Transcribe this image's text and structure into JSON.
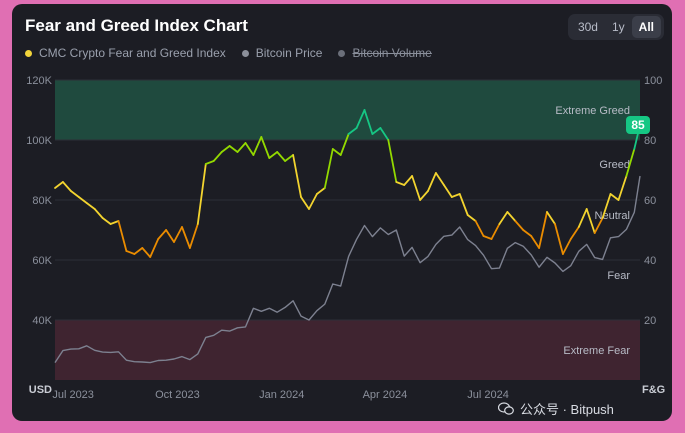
{
  "title": "Fear and Greed Index Chart",
  "range_buttons": [
    "30d",
    "1y",
    "All"
  ],
  "active_range": "All",
  "legend": [
    {
      "label": "CMC Crypto Fear and Greed Index",
      "color": "#f2d43b",
      "active": true
    },
    {
      "label": "Bitcoin Price",
      "color": "#8b8f9a",
      "active": true
    },
    {
      "label": "Bitcoin Volume",
      "color": "#6b6f7a",
      "active": false
    }
  ],
  "colors": {
    "extreme_greed_zone": "#1f4a3e",
    "extreme_fear_zone": "#3f2430",
    "extreme_greed": "#16c784",
    "greed": "#93d900",
    "neutral": "#f3d42f",
    "fear": "#ea8c00",
    "extreme_fear": "#ea3943",
    "btc_line": "#7d8190",
    "current_badge": "#16c784"
  },
  "chart_data": {
    "type": "line",
    "x_ticks": [
      "Jul 2023",
      "Oct 2023",
      "Jan 2024",
      "Apr 2024",
      "Jul 2024"
    ],
    "left_axis": {
      "title": "USD",
      "ticks": [
        "120K",
        "100K",
        "80K",
        "60K",
        "40K"
      ],
      "range": [
        20000,
        120000
      ]
    },
    "right_axis": {
      "title": "F&G",
      "ticks": [
        "100",
        "80",
        "60",
        "40",
        "20"
      ],
      "range": [
        0,
        100
      ]
    },
    "zones": [
      "Extreme Greed",
      "Greed",
      "Neutral",
      "Fear",
      "Extreme Fear"
    ],
    "x_range": [
      "2023-06-15",
      "2024-11-12"
    ],
    "current_value": "85",
    "series": [
      {
        "name": "CMC Crypto Fear and Greed Index",
        "points": [
          [
            "2023-06-15",
            64
          ],
          [
            "2023-06-22",
            66
          ],
          [
            "2023-06-29",
            63
          ],
          [
            "2023-07-06",
            61
          ],
          [
            "2023-07-13",
            59
          ],
          [
            "2023-07-20",
            57
          ],
          [
            "2023-07-27",
            54
          ],
          [
            "2023-08-03",
            52
          ],
          [
            "2023-08-10",
            53
          ],
          [
            "2023-08-17",
            43
          ],
          [
            "2023-08-24",
            42
          ],
          [
            "2023-08-31",
            44
          ],
          [
            "2023-09-07",
            41
          ],
          [
            "2023-09-14",
            47
          ],
          [
            "2023-09-21",
            50
          ],
          [
            "2023-09-28",
            46
          ],
          [
            "2023-10-05",
            51
          ],
          [
            "2023-10-12",
            44
          ],
          [
            "2023-10-19",
            52
          ],
          [
            "2023-10-26",
            72
          ],
          [
            "2023-11-02",
            73
          ],
          [
            "2023-11-09",
            76
          ],
          [
            "2023-11-16",
            78
          ],
          [
            "2023-11-23",
            76
          ],
          [
            "2023-11-30",
            79
          ],
          [
            "2023-12-07",
            75
          ],
          [
            "2023-12-14",
            81
          ],
          [
            "2023-12-21",
            74
          ],
          [
            "2023-12-28",
            76
          ],
          [
            "2024-01-04",
            73
          ],
          [
            "2024-01-11",
            75
          ],
          [
            "2024-01-18",
            61
          ],
          [
            "2024-01-25",
            57
          ],
          [
            "2024-02-01",
            62
          ],
          [
            "2024-02-08",
            64
          ],
          [
            "2024-02-15",
            77
          ],
          [
            "2024-02-22",
            75
          ],
          [
            "2024-02-29",
            82
          ],
          [
            "2024-03-07",
            84
          ],
          [
            "2024-03-14",
            90
          ],
          [
            "2024-03-21",
            82
          ],
          [
            "2024-03-28",
            84
          ],
          [
            "2024-04-04",
            80
          ],
          [
            "2024-04-11",
            66
          ],
          [
            "2024-04-18",
            65
          ],
          [
            "2024-04-25",
            68
          ],
          [
            "2024-05-02",
            60
          ],
          [
            "2024-05-09",
            63
          ],
          [
            "2024-05-16",
            69
          ],
          [
            "2024-05-23",
            65
          ],
          [
            "2024-05-30",
            61
          ],
          [
            "2024-06-06",
            62
          ],
          [
            "2024-06-13",
            55
          ],
          [
            "2024-06-20",
            53
          ],
          [
            "2024-06-27",
            48
          ],
          [
            "2024-07-04",
            47
          ],
          [
            "2024-07-11",
            52
          ],
          [
            "2024-07-18",
            56
          ],
          [
            "2024-07-25",
            53
          ],
          [
            "2024-08-01",
            50
          ],
          [
            "2024-08-08",
            48
          ],
          [
            "2024-08-15",
            44
          ],
          [
            "2024-08-22",
            56
          ],
          [
            "2024-08-29",
            52
          ],
          [
            "2024-09-05",
            42
          ],
          [
            "2024-09-12",
            47
          ],
          [
            "2024-09-19",
            51
          ],
          [
            "2024-09-26",
            57
          ],
          [
            "2024-10-03",
            49
          ],
          [
            "2024-10-10",
            54
          ],
          [
            "2024-10-17",
            62
          ],
          [
            "2024-10-24",
            60
          ],
          [
            "2024-10-31",
            68
          ],
          [
            "2024-11-07",
            77
          ],
          [
            "2024-11-12",
            85
          ]
        ]
      },
      {
        "name": "Bitcoin Price",
        "points": [
          [
            "2023-06-15",
            25800
          ],
          [
            "2023-06-22",
            29800
          ],
          [
            "2023-06-29",
            30300
          ],
          [
            "2023-07-06",
            30400
          ],
          [
            "2023-07-13",
            31400
          ],
          [
            "2023-07-20",
            29900
          ],
          [
            "2023-07-27",
            29300
          ],
          [
            "2023-08-03",
            29200
          ],
          [
            "2023-08-10",
            29400
          ],
          [
            "2023-08-17",
            26600
          ],
          [
            "2023-08-24",
            26100
          ],
          [
            "2023-08-31",
            26000
          ],
          [
            "2023-09-07",
            25800
          ],
          [
            "2023-09-14",
            26500
          ],
          [
            "2023-09-21",
            26600
          ],
          [
            "2023-09-28",
            27000
          ],
          [
            "2023-10-05",
            27800
          ],
          [
            "2023-10-12",
            26800
          ],
          [
            "2023-10-19",
            28700
          ],
          [
            "2023-10-26",
            34200
          ],
          [
            "2023-11-02",
            34900
          ],
          [
            "2023-11-09",
            36600
          ],
          [
            "2023-11-16",
            36300
          ],
          [
            "2023-11-23",
            37400
          ],
          [
            "2023-11-30",
            37700
          ],
          [
            "2023-12-07",
            43900
          ],
          [
            "2023-12-14",
            42900
          ],
          [
            "2023-12-21",
            43900
          ],
          [
            "2023-12-28",
            42600
          ],
          [
            "2024-01-04",
            44200
          ],
          [
            "2024-01-11",
            46400
          ],
          [
            "2024-01-18",
            41300
          ],
          [
            "2024-01-25",
            40000
          ],
          [
            "2024-02-01",
            43100
          ],
          [
            "2024-02-08",
            45300
          ],
          [
            "2024-02-15",
            52000
          ],
          [
            "2024-02-22",
            51300
          ],
          [
            "2024-02-29",
            61200
          ],
          [
            "2024-03-07",
            66900
          ],
          [
            "2024-03-14",
            71500
          ],
          [
            "2024-03-21",
            67800
          ],
          [
            "2024-03-28",
            70700
          ],
          [
            "2024-04-04",
            68500
          ],
          [
            "2024-04-11",
            70000
          ],
          [
            "2024-04-18",
            61300
          ],
          [
            "2024-04-25",
            64200
          ],
          [
            "2024-05-02",
            59100
          ],
          [
            "2024-05-09",
            61200
          ],
          [
            "2024-05-16",
            65200
          ],
          [
            "2024-05-23",
            67900
          ],
          [
            "2024-05-30",
            68300
          ],
          [
            "2024-06-06",
            71000
          ],
          [
            "2024-06-13",
            66800
          ],
          [
            "2024-06-20",
            64800
          ],
          [
            "2024-06-27",
            61600
          ],
          [
            "2024-07-04",
            57100
          ],
          [
            "2024-07-11",
            57300
          ],
          [
            "2024-07-18",
            63900
          ],
          [
            "2024-07-25",
            65800
          ],
          [
            "2024-08-01",
            64600
          ],
          [
            "2024-08-08",
            61700
          ],
          [
            "2024-08-15",
            57600
          ],
          [
            "2024-08-22",
            60900
          ],
          [
            "2024-08-29",
            59000
          ],
          [
            "2024-09-05",
            56200
          ],
          [
            "2024-09-12",
            58100
          ],
          [
            "2024-09-19",
            62900
          ],
          [
            "2024-09-26",
            65200
          ],
          [
            "2024-10-03",
            60800
          ],
          [
            "2024-10-10",
            60200
          ],
          [
            "2024-10-17",
            67400
          ],
          [
            "2024-10-24",
            67800
          ],
          [
            "2024-10-31",
            70200
          ],
          [
            "2024-11-07",
            75900
          ],
          [
            "2024-11-12",
            88000
          ]
        ]
      }
    ]
  },
  "watermark": "公众号 · Bitpush"
}
